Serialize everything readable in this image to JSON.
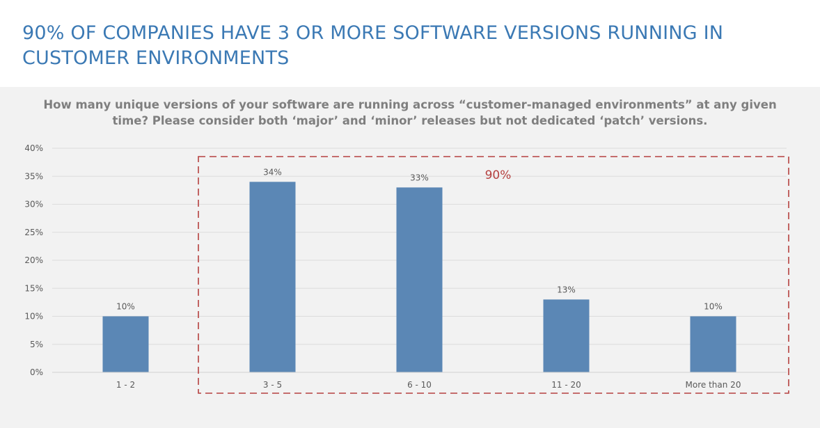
{
  "slide": {
    "title": "90% of companies have 3 or more software versions running in customer environments"
  },
  "chart_data": {
    "type": "bar",
    "title": "How many unique versions of your software are running across “customer-managed environments” at any given time? Please consider both ‘major’ and ‘minor’ releases but not dedicated ‘patch’ versions.",
    "xlabel": "",
    "ylabel": "",
    "categories": [
      "1 - 2",
      "3 - 5",
      "6 - 10",
      "11 - 20",
      "More than 20"
    ],
    "values": [
      10,
      34,
      33,
      13,
      10
    ],
    "value_labels": [
      "10%",
      "34%",
      "33%",
      "13%",
      "10%"
    ],
    "ylim": [
      0,
      40
    ],
    "yticks": [
      0,
      5,
      10,
      15,
      20,
      25,
      30,
      35,
      40
    ],
    "ytick_labels": [
      "0%",
      "5%",
      "10%",
      "15%",
      "20%",
      "25%",
      "30%",
      "35%",
      "40%"
    ],
    "grid": true,
    "legend": "none",
    "bar_color": "#5b87b5",
    "grid_color": "#dcdcdc",
    "annotation": {
      "label": "90%",
      "spans_categories": [
        "3 - 5",
        "6 - 10",
        "11 - 20",
        "More than 20"
      ],
      "style": "dashed-box",
      "color": "#b5403f"
    }
  },
  "colors": {
    "title": "#3b79b4",
    "panel_background": "#f2f2f2",
    "question_text": "#7f7f7f"
  }
}
